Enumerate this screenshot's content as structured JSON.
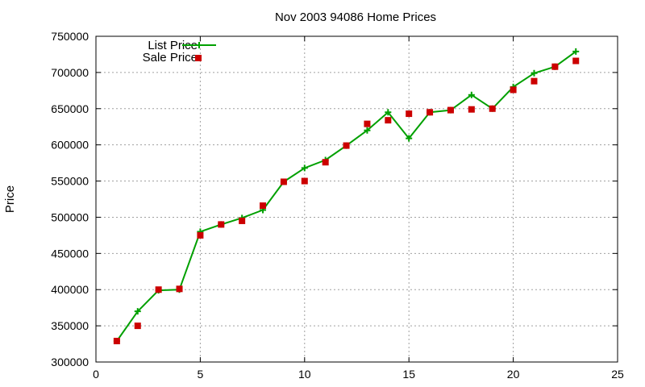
{
  "chart_data": {
    "type": "line",
    "title": "Nov 2003 94086 Home Prices",
    "xlabel": "",
    "ylabel": "Price",
    "xlim": [
      0,
      25
    ],
    "ylim": [
      300000,
      750000
    ],
    "x_ticks": [
      0,
      5,
      10,
      15,
      20,
      25
    ],
    "y_ticks": [
      300000,
      350000,
      400000,
      450000,
      500000,
      550000,
      600000,
      650000,
      700000,
      750000
    ],
    "grid": true,
    "legend_position": "top-left",
    "series": [
      {
        "name": "List Price",
        "style": "line+cross-markers",
        "color": "#00a000",
        "x": [
          1,
          2,
          3,
          4,
          5,
          6,
          7,
          8,
          9,
          10,
          11,
          12,
          13,
          14,
          15,
          16,
          17,
          18,
          19,
          20,
          21,
          22,
          23
        ],
        "values": [
          329000,
          370000,
          399000,
          400000,
          480000,
          490000,
          499000,
          510000,
          549000,
          568000,
          579000,
          599000,
          620000,
          645000,
          609000,
          645000,
          648000,
          669000,
          650000,
          680000,
          699000,
          708000,
          729000
        ]
      },
      {
        "name": "Sale Price",
        "style": "square-markers",
        "color": "#cc0000",
        "x": [
          1,
          2,
          3,
          4,
          5,
          6,
          7,
          8,
          9,
          10,
          11,
          12,
          13,
          14,
          15,
          16,
          17,
          18,
          19,
          20,
          21,
          22,
          23
        ],
        "values": [
          329000,
          350000,
          400000,
          401000,
          475000,
          490000,
          495000,
          516000,
          549000,
          550000,
          576000,
          599000,
          629000,
          634000,
          643000,
          645000,
          648000,
          649000,
          650000,
          676000,
          688000,
          708000,
          716000
        ]
      }
    ]
  }
}
